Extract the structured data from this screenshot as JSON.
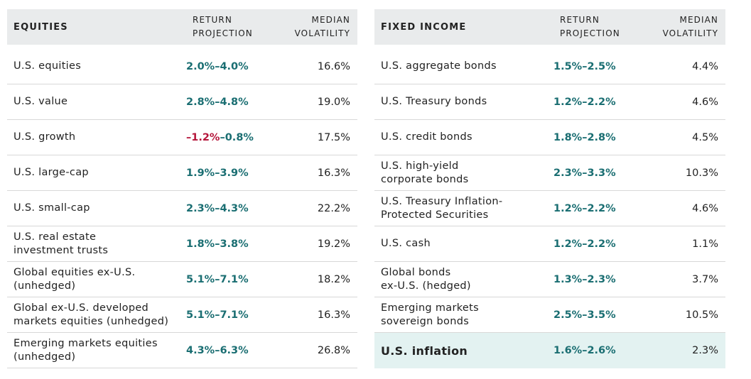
{
  "equities": {
    "headers": {
      "asset": "EQUITIES",
      "return_line1": "RETURN",
      "return_line2": "PROJECTION",
      "vol_line1": "MEDIAN",
      "vol_line2": "VOLATILITY"
    },
    "rows": [
      {
        "line1": "U.S. equities",
        "line2": "",
        "ret_neg": "",
        "ret": "2.0%–4.0%",
        "vol": "16.6%"
      },
      {
        "line1": "U.S. value",
        "line2": "",
        "ret_neg": "",
        "ret": "2.8%–4.8%",
        "vol": "19.0%"
      },
      {
        "line1": "U.S. growth",
        "line2": "",
        "ret_neg": "–1.2%",
        "ret": "–0.8%",
        "vol": "17.5%"
      },
      {
        "line1": "U.S. large-cap",
        "line2": "",
        "ret_neg": "",
        "ret": "1.9%–3.9%",
        "vol": "16.3%"
      },
      {
        "line1": "U.S. small-cap",
        "line2": "",
        "ret_neg": "",
        "ret": "2.3%–4.3%",
        "vol": "22.2%"
      },
      {
        "line1": "U.S. real estate",
        "line2": "investment trusts",
        "ret_neg": "",
        "ret": "1.8%–3.8%",
        "vol": "19.2%"
      },
      {
        "line1": "Global equities ex-U.S.",
        "line2": "(unhedged)",
        "ret_neg": "",
        "ret": "5.1%–7.1%",
        "vol": "18.2%"
      },
      {
        "line1": "Global ex-U.S. developed",
        "line2": "markets equities (unhedged)",
        "ret_neg": "",
        "ret": "5.1%–7.1%",
        "vol": "16.3%"
      },
      {
        "line1": "Emerging markets equities",
        "line2": "(unhedged)",
        "ret_neg": "",
        "ret": "4.3%–6.3%",
        "vol": "26.8%"
      }
    ]
  },
  "fixed_income": {
    "headers": {
      "asset": "FIXED INCOME",
      "return_line1": "RETURN",
      "return_line2": "PROJECTION",
      "vol_line1": "MEDIAN",
      "vol_line2": "VOLATILITY"
    },
    "rows": [
      {
        "line1": "U.S. aggregate bonds",
        "line2": "",
        "ret": "1.5%–2.5%",
        "vol": "4.4%"
      },
      {
        "line1": "U.S. Treasury bonds",
        "line2": "",
        "ret": "1.2%–2.2%",
        "vol": "4.6%"
      },
      {
        "line1": "U.S. credit bonds",
        "line2": "",
        "ret": "1.8%–2.8%",
        "vol": "4.5%"
      },
      {
        "line1": "U.S. high-yield",
        "line2": "corporate bonds",
        "ret": "2.3%–3.3%",
        "vol": "10.3%"
      },
      {
        "line1": "U.S. Treasury Inflation-",
        "line2": "Protected Securities",
        "ret": "1.2%–2.2%",
        "vol": "4.6%"
      },
      {
        "line1": "U.S. cash",
        "line2": "",
        "ret": "1.2%–2.2%",
        "vol": "1.1%"
      },
      {
        "line1": "Global bonds",
        "line2": "ex-U.S. (hedged)",
        "ret": "1.3%–2.3%",
        "vol": "3.7%"
      },
      {
        "line1": "Emerging markets",
        "line2": "sovereign bonds",
        "ret": "2.5%–3.5%",
        "vol": "10.5%"
      },
      {
        "line1": "U.S. inflation",
        "line2": "",
        "ret": "1.6%–2.6%",
        "vol": "2.3%"
      }
    ]
  },
  "colors": {
    "header_bg": "#e9ebec",
    "return_teal": "#1a6e72",
    "negative_red": "#b5163b",
    "highlight_bg": "#e3f2f1"
  }
}
